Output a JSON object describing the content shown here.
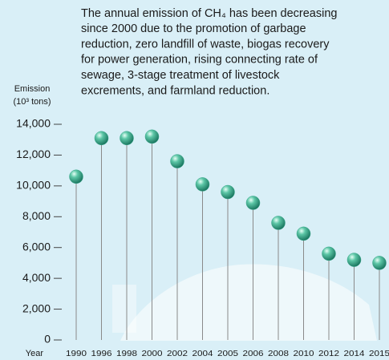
{
  "chart_data": {
    "type": "lollipop",
    "annotation": [
      "The annual emission of CH₄ has been decreasing",
      "since 2000 due to the promotion of garbage",
      "reduction, zero landfill of waste, biogas recovery",
      "for power generation, rising connecting rate of",
      "sewage, 3-stage treatment of livestock",
      "excrements, and farmland reduction."
    ],
    "y_label": [
      "Emission",
      "(10³ tons)"
    ],
    "x_label": "Year",
    "categories": [
      "1990",
      "1996",
      "1998",
      "2000",
      "2002",
      "2004",
      "2005",
      "2006",
      "2008",
      "2010",
      "2012",
      "2014",
      "2015"
    ],
    "values": [
      10600,
      13100,
      13100,
      13200,
      11600,
      10100,
      9600,
      8900,
      7600,
      6900,
      5600,
      5200,
      5000
    ],
    "color": "#3aa88c",
    "ylim": [
      0,
      14000
    ],
    "yticks": [
      0,
      {
        "value": 2000,
        "label": "2,000"
      },
      {
        "value": 4000,
        "label": "4,000"
      },
      {
        "value": 6000,
        "label": "6,000"
      },
      {
        "value": 8000,
        "label": "8,000"
      },
      {
        "value": 10000,
        "label": "10,000"
      },
      {
        "value": 12000,
        "label": "12,000"
      },
      {
        "value": 14000,
        "label": "14,000"
      }
    ]
  }
}
